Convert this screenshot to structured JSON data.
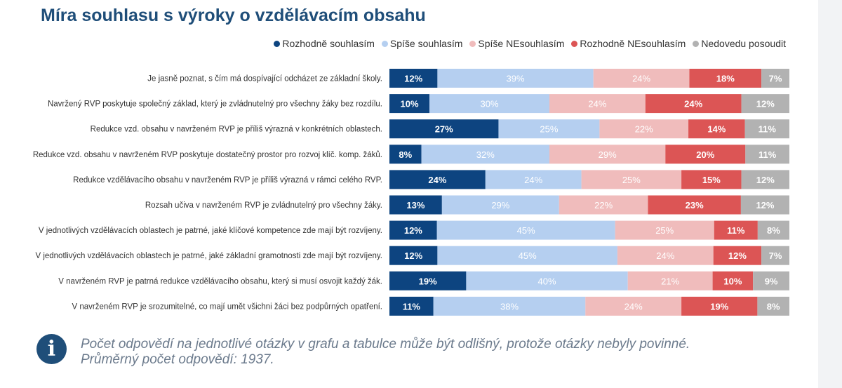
{
  "title": "Míra souhlasu s výroky o vzdělávacím obsahu",
  "note": {
    "icon": "info-icon",
    "line1": "Počet odpovědí na jednotlivé otázky v grafu a tabulce může být odlišný, protože otázky nebyly povinné.",
    "line2": "Průměrný počet odpovědí: 1937."
  },
  "chart_data": {
    "type": "bar",
    "orientation": "horizontal",
    "stacked": "100%",
    "legend_position": "top-right",
    "grid": false,
    "categories": [
      "Je jasně poznat, s čím má dospívající odcházet ze základní školy.",
      "Navržený RVP poskytuje společný základ, který je zvládnutelný pro všechny žáky bez rozdílu.",
      "Redukce vzd. obsahu v navrženém RVP je příliš výrazná v konkrétních oblastech.",
      "Redukce vzd. obsahu v navrženém RVP poskytuje dostatečný prostor pro rozvoj klíč. komp. žáků.",
      "Redukce vzdělávacího obsahu v navrženém RVP je příliš výrazná v rámci celého RVP.",
      "Rozsah učiva v navrženém RVP je zvládnutelný pro všechny žáky.",
      "V jednotlivých vzdělávacích oblastech je patrné, jaké klíčové kompetence zde mají být rozvíjeny.",
      "V jednotlivých vzdělávacích oblastech je patrné, jaké základní gramotnosti zde mají být rozvíjeny.",
      "V navrženém RVP je patrná redukce vzdělávacího obsahu, který si musí osvojit každý žák.",
      "V navrženém RVP je srozumitelné, co mají umět všichni žáci bez podpůrných opatření."
    ],
    "series": [
      {
        "name": "Rozhodně souhlasím",
        "color": "#0d4480",
        "label_color": "#ffffff",
        "values": [
          12,
          10,
          27,
          8,
          24,
          13,
          12,
          12,
          19,
          11
        ]
      },
      {
        "name": "Spíše souhlasím",
        "color": "#b5cff0",
        "label_color": "#ffffff",
        "values": [
          39,
          30,
          25,
          32,
          24,
          29,
          45,
          45,
          40,
          38
        ]
      },
      {
        "name": "Spíše NEsouhlasím",
        "color": "#f0bcbc",
        "label_color": "#ffffff",
        "values": [
          24,
          24,
          22,
          29,
          25,
          22,
          25,
          24,
          21,
          24
        ]
      },
      {
        "name": "Rozhodně NEsouhlasím",
        "color": "#dc5555",
        "label_color": "#ffffff",
        "values": [
          18,
          24,
          14,
          20,
          15,
          23,
          11,
          12,
          10,
          19
        ]
      },
      {
        "name": "Nedovedu posoudit",
        "color": "#b2b2b2",
        "label_color": "#ffffff",
        "values": [
          7,
          12,
          11,
          11,
          12,
          12,
          8,
          7,
          9,
          8
        ]
      }
    ]
  }
}
